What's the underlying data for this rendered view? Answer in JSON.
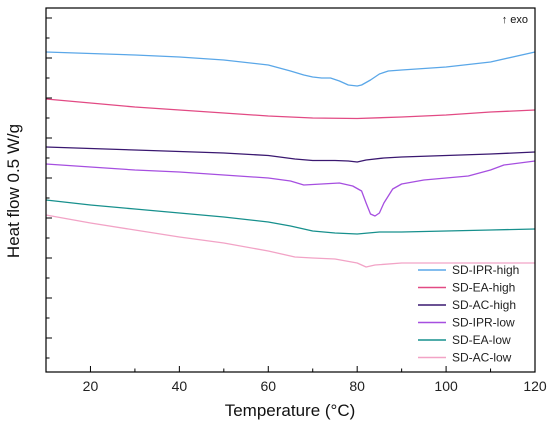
{
  "chart_data": {
    "type": "line",
    "title": "",
    "xlabel": "Temperature (°C)",
    "ylabel": "Heat flow 0.5 W/g",
    "annotation": "↑ exo",
    "xlim": [
      10,
      120
    ],
    "x_ticks": [
      20,
      40,
      60,
      80,
      100,
      120
    ],
    "y_tick_labels": "none",
    "grid": false,
    "legend_position": "bottom-right",
    "series": [
      {
        "name": "SD-IPR-high",
        "color": "#5aa7e8",
        "points": [
          [
            10,
            44
          ],
          [
            20,
            45.5
          ],
          [
            30,
            47
          ],
          [
            40,
            49
          ],
          [
            50,
            52
          ],
          [
            60,
            57
          ],
          [
            65,
            63
          ],
          [
            68,
            67
          ],
          [
            70,
            69
          ],
          [
            72,
            70
          ],
          [
            74,
            70
          ],
          [
            76,
            73
          ],
          [
            78,
            77
          ],
          [
            80,
            78
          ],
          [
            81,
            77
          ],
          [
            83,
            72
          ],
          [
            85,
            66
          ],
          [
            87,
            63
          ],
          [
            90,
            62
          ],
          [
            100,
            59
          ],
          [
            110,
            54
          ],
          [
            120,
            44
          ]
        ]
      },
      {
        "name": "SD-EA-high",
        "color": "#e24a84",
        "points": [
          [
            10,
            91
          ],
          [
            20,
            95
          ],
          [
            30,
            99
          ],
          [
            40,
            102
          ],
          [
            50,
            105
          ],
          [
            60,
            108
          ],
          [
            70,
            110
          ],
          [
            80,
            110.5
          ],
          [
            90,
            109
          ],
          [
            100,
            107
          ],
          [
            110,
            104
          ],
          [
            120,
            102
          ]
        ]
      },
      {
        "name": "SD-AC-high",
        "color": "#3a1870",
        "points": [
          [
            10,
            139
          ],
          [
            20,
            140.5
          ],
          [
            30,
            142
          ],
          [
            40,
            143.5
          ],
          [
            50,
            145
          ],
          [
            60,
            147.5
          ],
          [
            66,
            151
          ],
          [
            70,
            152.5
          ],
          [
            75,
            152.5
          ],
          [
            78,
            153
          ],
          [
            80,
            154
          ],
          [
            82,
            152
          ],
          [
            86,
            150
          ],
          [
            90,
            149
          ],
          [
            100,
            147.5
          ],
          [
            110,
            146
          ],
          [
            120,
            144
          ]
        ]
      },
      {
        "name": "SD-IPR-low",
        "color": "#a64fe0",
        "points": [
          [
            10,
            156
          ],
          [
            20,
            159
          ],
          [
            30,
            162
          ],
          [
            40,
            164
          ],
          [
            50,
            167
          ],
          [
            60,
            170
          ],
          [
            65,
            173
          ],
          [
            68,
            177
          ],
          [
            72,
            176
          ],
          [
            76,
            175
          ],
          [
            79,
            178
          ],
          [
            81,
            183
          ],
          [
            82,
            195
          ],
          [
            83,
            206
          ],
          [
            84,
            208
          ],
          [
            85,
            205
          ],
          [
            86,
            195
          ],
          [
            88,
            181
          ],
          [
            90,
            176
          ],
          [
            95,
            172
          ],
          [
            100,
            170
          ],
          [
            105,
            168
          ],
          [
            110,
            162
          ],
          [
            113,
            157
          ],
          [
            120,
            153
          ]
        ]
      },
      {
        "name": "SD-EA-low",
        "color": "#17908d",
        "points": [
          [
            10,
            192
          ],
          [
            20,
            197
          ],
          [
            30,
            201
          ],
          [
            40,
            205
          ],
          [
            50,
            209
          ],
          [
            60,
            214
          ],
          [
            65,
            218
          ],
          [
            70,
            223
          ],
          [
            75,
            225
          ],
          [
            80,
            226
          ],
          [
            85,
            224
          ],
          [
            90,
            224
          ],
          [
            100,
            223
          ],
          [
            110,
            222
          ],
          [
            120,
            221
          ]
        ]
      },
      {
        "name": "SD-AC-low",
        "color": "#f2a3c6",
        "points": [
          [
            10,
            207
          ],
          [
            20,
            215
          ],
          [
            30,
            222
          ],
          [
            40,
            229
          ],
          [
            50,
            235
          ],
          [
            60,
            243
          ],
          [
            66,
            249
          ],
          [
            70,
            250
          ],
          [
            75,
            251
          ],
          [
            80,
            255
          ],
          [
            82,
            259
          ],
          [
            84,
            257
          ],
          [
            90,
            255
          ],
          [
            100,
            255
          ],
          [
            110,
            255
          ],
          [
            120,
            255
          ]
        ]
      }
    ]
  }
}
